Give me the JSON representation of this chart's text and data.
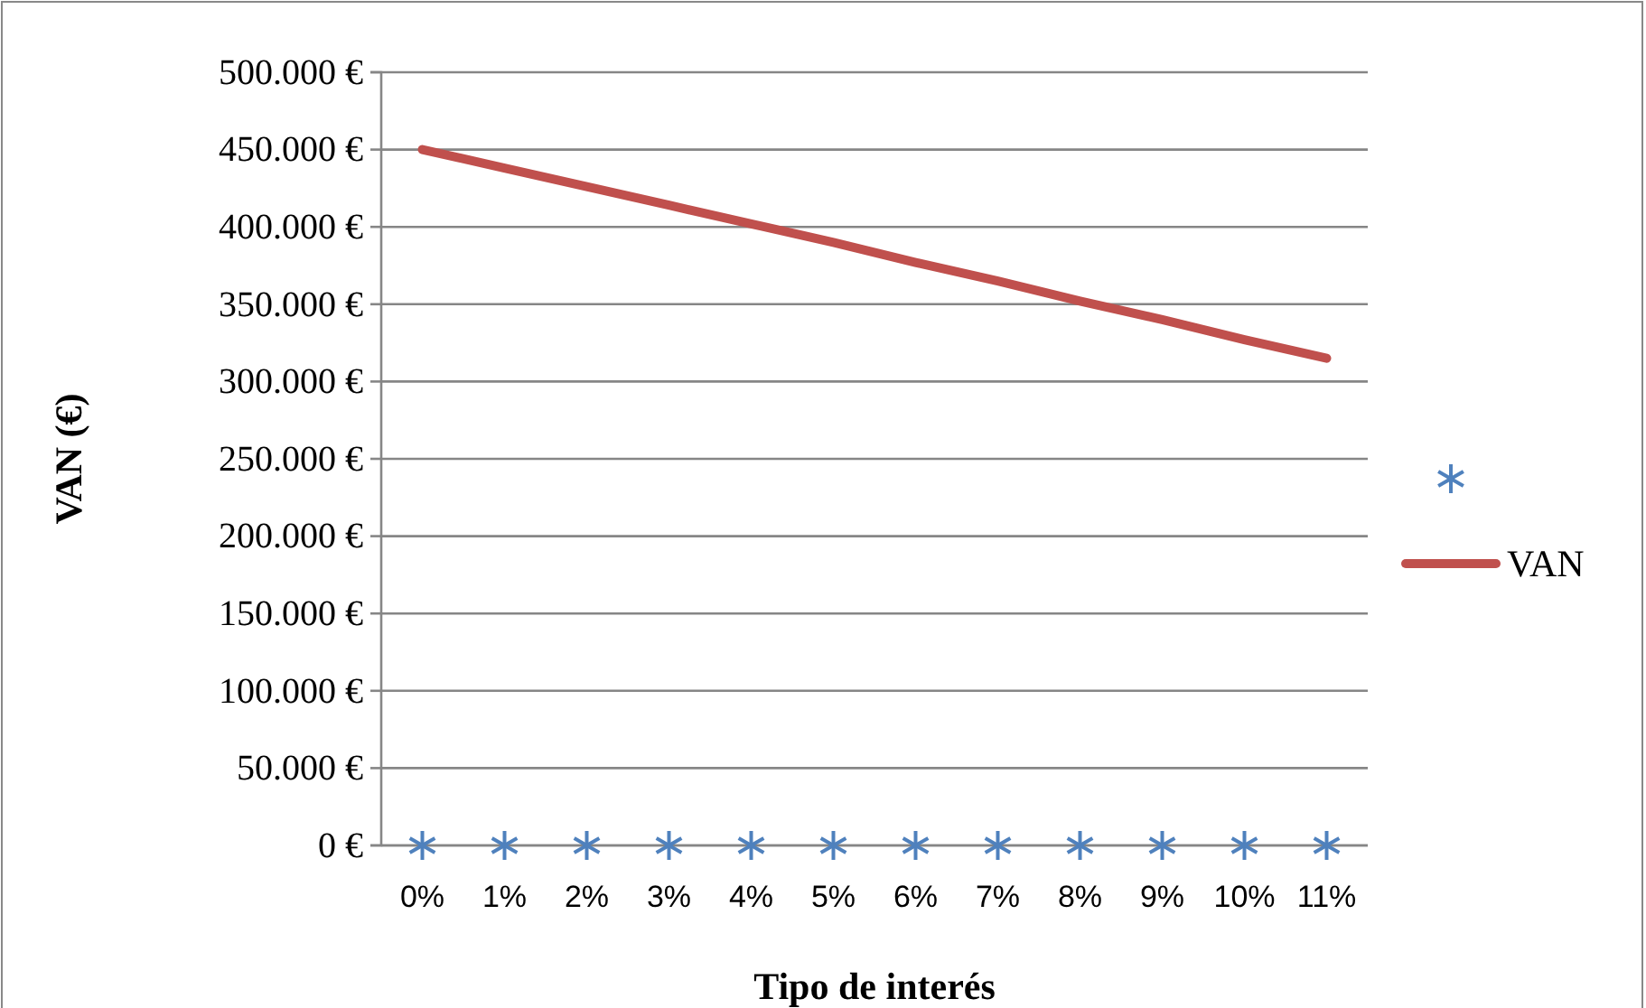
{
  "chart_data": {
    "type": "line",
    "xlabel": "Tipo de interés",
    "ylabel": "VAN (€)",
    "categories": [
      "0%",
      "1%",
      "2%",
      "3%",
      "4%",
      "5%",
      "6%",
      "7%",
      "8%",
      "9%",
      "10%",
      "11%"
    ],
    "series": [
      {
        "type": "scatter",
        "color": "#4f81bd",
        "marker": "cross",
        "values": [
          0,
          0,
          0,
          0,
          0,
          0,
          0,
          0,
          0,
          0,
          0,
          0
        ]
      },
      {
        "name": "VAN",
        "color": "#c0504d",
        "marker": "none",
        "line_style": "solid",
        "values": [
          450000,
          438000,
          426000,
          414000,
          402000,
          390000,
          377000,
          365000,
          352000,
          340000,
          327000,
          315000
        ]
      }
    ],
    "ylim": [
      0,
      500000
    ],
    "yticks": [
      {
        "value": 0,
        "label": "0 €"
      },
      {
        "value": 50000,
        "label": "50.000 €"
      },
      {
        "value": 100000,
        "label": "100.000 €"
      },
      {
        "value": 150000,
        "label": "150.000 €"
      },
      {
        "value": 200000,
        "label": "200.000 €"
      },
      {
        "value": 250000,
        "label": "250.000 €"
      },
      {
        "value": 300000,
        "label": "300.000 €"
      },
      {
        "value": 350000,
        "label": "350.000 €"
      },
      {
        "value": 400000,
        "label": "400.000 €"
      },
      {
        "value": 450000,
        "label": "450.000 €"
      },
      {
        "value": 500000,
        "label": "500.000 €"
      }
    ],
    "grid": "y",
    "legend": "right"
  }
}
